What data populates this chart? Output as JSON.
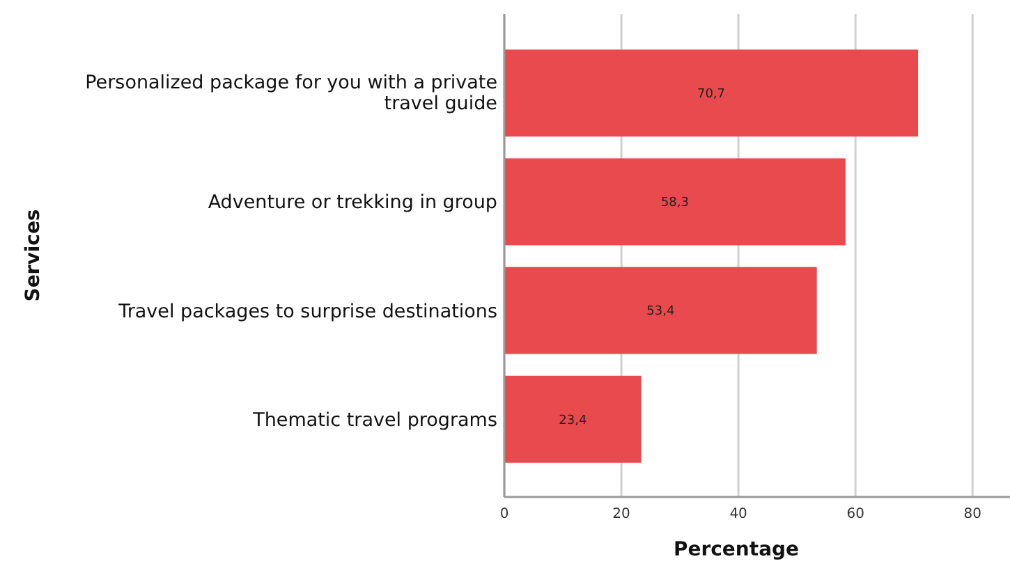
{
  "chart_data": {
    "type": "bar",
    "orientation": "horizontal",
    "xlabel": "Percentage",
    "ylabel": "Services",
    "categories": [
      "Personalized package for you with a private travel guide",
      "Adventure or trekking in group",
      "Travel packages to surprise destinations",
      "Thematic travel programs"
    ],
    "values": [
      70.7,
      58.3,
      53.4,
      23.4
    ],
    "value_labels": [
      "70,7",
      "58,3",
      "53,4",
      "23,4"
    ],
    "color": "#e84a4d",
    "xlim": [
      0,
      86.4
    ],
    "xticks": [
      0,
      20,
      40,
      60,
      80
    ],
    "grid": "x"
  }
}
